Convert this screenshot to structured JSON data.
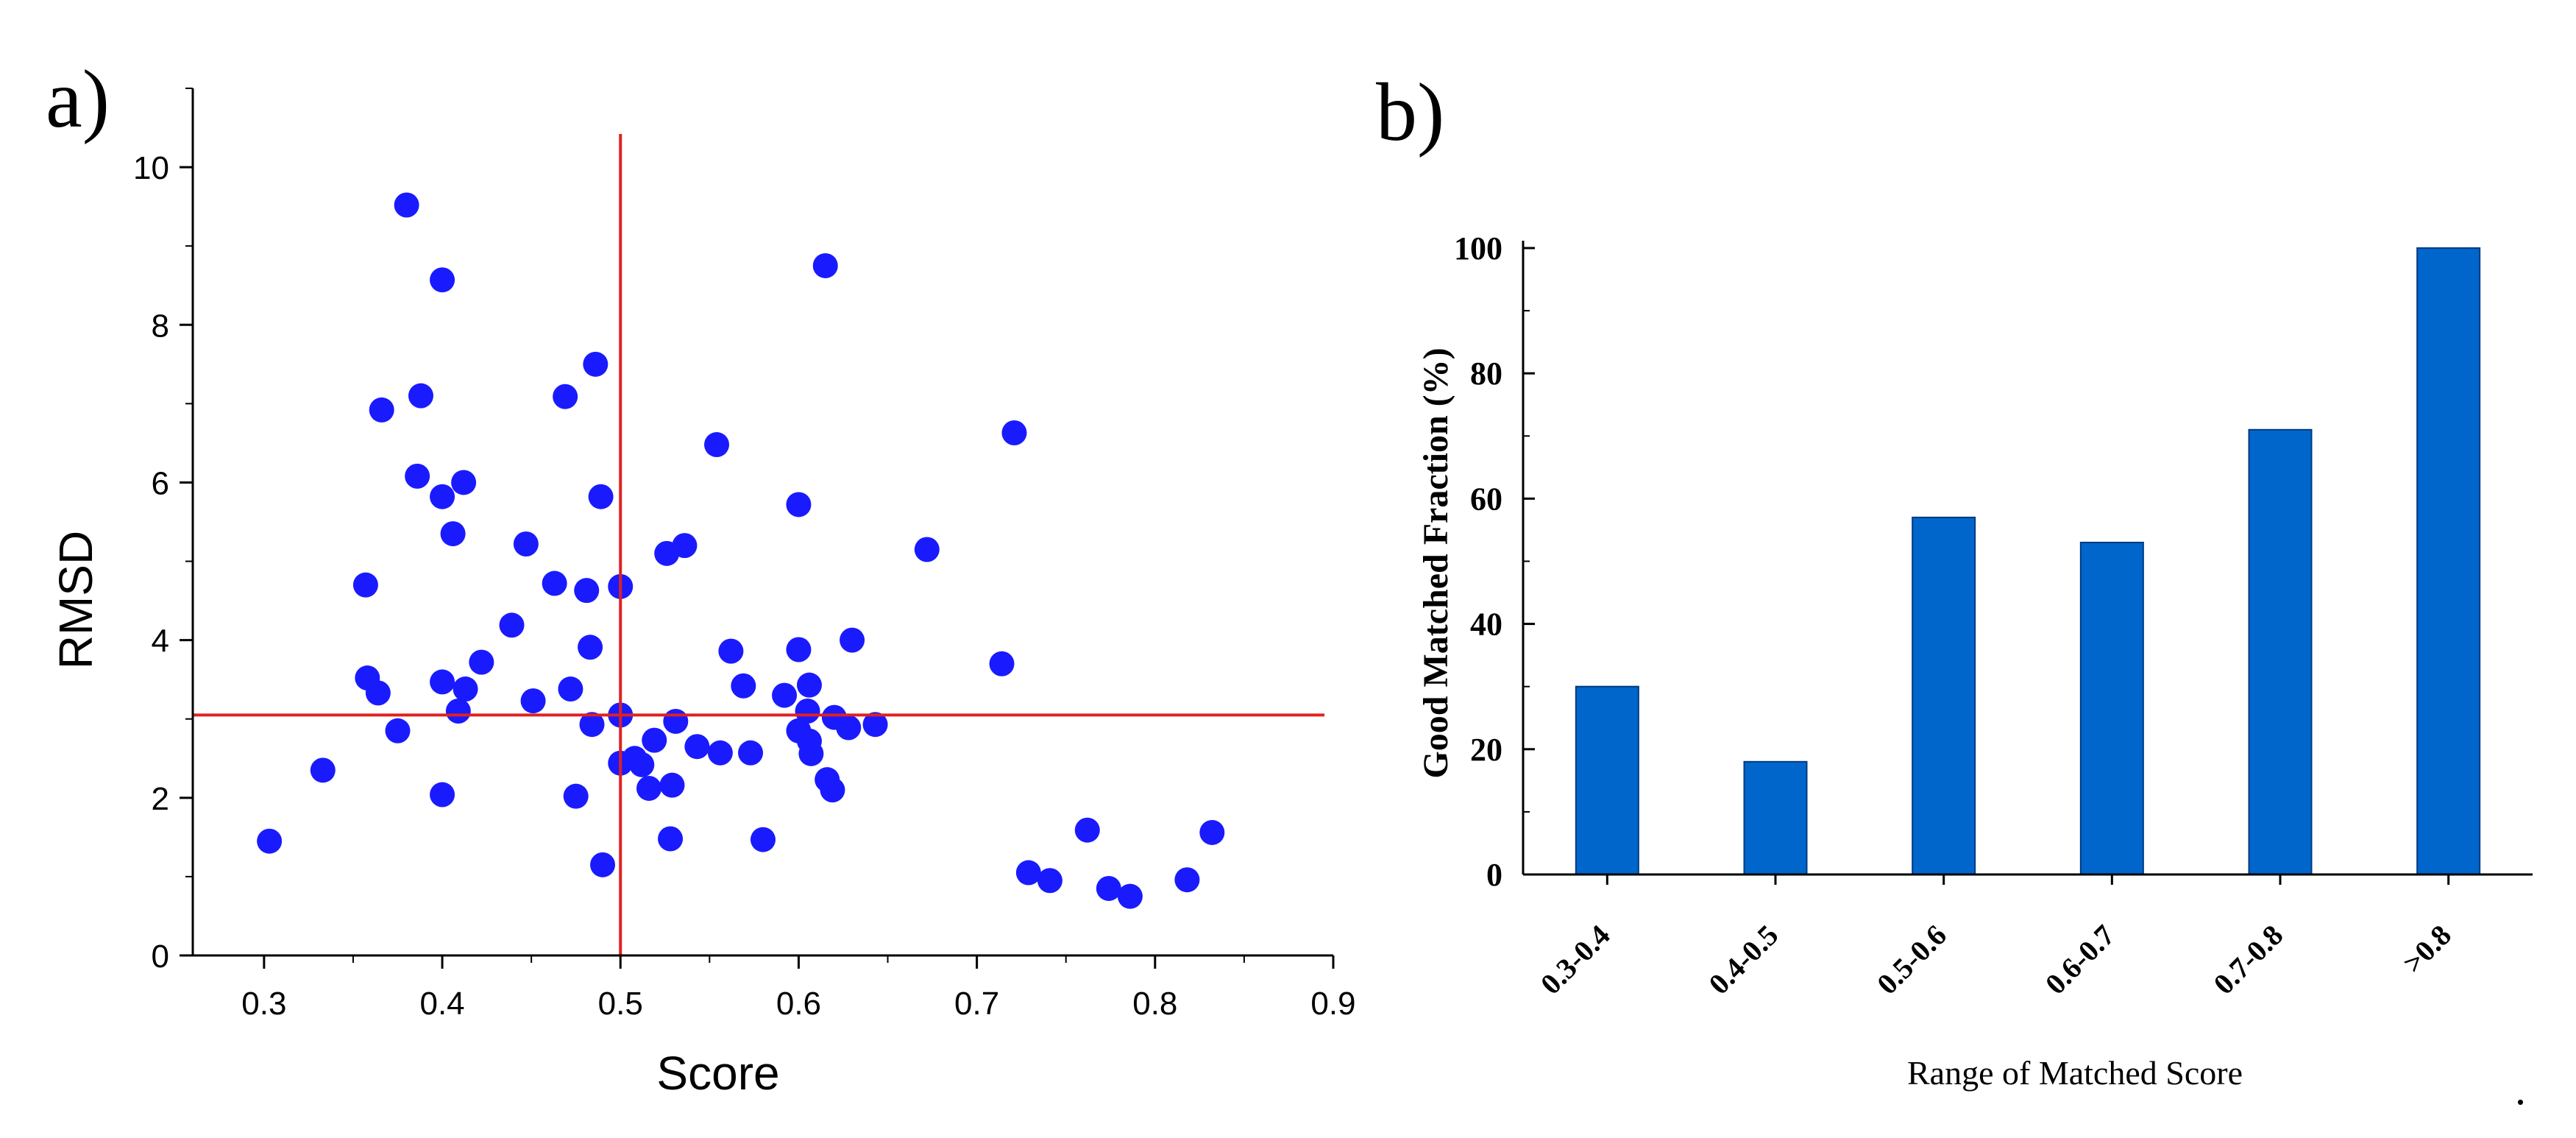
{
  "panels": {
    "a": {
      "label": "a)"
    },
    "b": {
      "label": "b)"
    }
  },
  "trailing_mark": ".",
  "colors": {
    "scatter_point": "#1a1aff",
    "threshold_line": "#e02020",
    "bar_fill": "#0066cc",
    "bar_stroke": "#003a80",
    "axis": "#000000"
  },
  "chart_data": [
    {
      "panel": "a",
      "type": "scatter",
      "title": "",
      "xlabel": "Score",
      "ylabel": "RMSD",
      "xlim": [
        0.26,
        0.9
      ],
      "ylim": [
        0,
        11
      ],
      "xticks": [
        0.3,
        0.4,
        0.5,
        0.6,
        0.7,
        0.8,
        0.9
      ],
      "xtick_labels": [
        "0.3",
        "0.4",
        "0.5",
        "0.6",
        "0.7",
        "0.8",
        "0.9"
      ],
      "yticks": [
        0,
        2,
        4,
        6,
        8,
        10
      ],
      "ytick_labels": [
        "0",
        "2",
        "4",
        "6",
        "8",
        "10"
      ],
      "grid": false,
      "reference_lines": {
        "vertical_x": 0.5,
        "horizontal_y": 3.05
      },
      "points": [
        [
          0.303,
          1.45
        ],
        [
          0.333,
          2.35
        ],
        [
          0.357,
          4.7
        ],
        [
          0.358,
          3.52
        ],
        [
          0.364,
          3.33
        ],
        [
          0.366,
          6.92
        ],
        [
          0.375,
          2.85
        ],
        [
          0.38,
          9.52
        ],
        [
          0.386,
          6.08
        ],
        [
          0.388,
          7.1
        ],
        [
          0.4,
          8.57
        ],
        [
          0.4,
          5.82
        ],
        [
          0.4,
          3.47
        ],
        [
          0.4,
          2.04
        ],
        [
          0.406,
          5.35
        ],
        [
          0.409,
          3.1
        ],
        [
          0.412,
          6.0
        ],
        [
          0.413,
          3.38
        ],
        [
          0.422,
          3.72
        ],
        [
          0.439,
          4.19
        ],
        [
          0.447,
          5.22
        ],
        [
          0.451,
          3.23
        ],
        [
          0.463,
          4.72
        ],
        [
          0.469,
          7.09
        ],
        [
          0.472,
          3.38
        ],
        [
          0.475,
          2.02
        ],
        [
          0.481,
          4.63
        ],
        [
          0.483,
          3.91
        ],
        [
          0.484,
          2.93
        ],
        [
          0.486,
          7.5
        ],
        [
          0.489,
          5.82
        ],
        [
          0.49,
          1.15
        ],
        [
          0.5,
          4.68
        ],
        [
          0.5,
          3.05
        ],
        [
          0.5,
          2.44
        ],
        [
          0.508,
          2.5
        ],
        [
          0.512,
          2.42
        ],
        [
          0.516,
          2.12
        ],
        [
          0.519,
          2.73
        ],
        [
          0.526,
          5.1
        ],
        [
          0.528,
          1.48
        ],
        [
          0.529,
          2.16
        ],
        [
          0.531,
          2.97
        ],
        [
          0.536,
          5.2
        ],
        [
          0.543,
          2.65
        ],
        [
          0.554,
          6.48
        ],
        [
          0.556,
          2.57
        ],
        [
          0.562,
          3.86
        ],
        [
          0.569,
          3.42
        ],
        [
          0.573,
          2.57
        ],
        [
          0.58,
          1.47
        ],
        [
          0.592,
          3.3
        ],
        [
          0.6,
          5.72
        ],
        [
          0.6,
          3.88
        ],
        [
          0.6,
          2.85
        ],
        [
          0.605,
          3.1
        ],
        [
          0.606,
          3.43
        ],
        [
          0.606,
          2.72
        ],
        [
          0.607,
          2.56
        ],
        [
          0.615,
          8.75
        ],
        [
          0.616,
          2.23
        ],
        [
          0.619,
          2.1
        ],
        [
          0.62,
          3.02
        ],
        [
          0.628,
          2.89
        ],
        [
          0.63,
          4.0
        ],
        [
          0.643,
          2.93
        ],
        [
          0.672,
          5.15
        ],
        [
          0.714,
          3.7
        ],
        [
          0.721,
          6.63
        ],
        [
          0.729,
          1.05
        ],
        [
          0.741,
          0.95
        ],
        [
          0.762,
          1.59
        ],
        [
          0.774,
          0.85
        ],
        [
          0.786,
          0.75
        ],
        [
          0.818,
          0.96
        ],
        [
          0.832,
          1.56
        ]
      ]
    },
    {
      "panel": "b",
      "type": "bar",
      "title": "",
      "xlabel": "Range of Matched Score",
      "ylabel": "Good Matched Fraction (%)",
      "ylim": [
        0,
        100
      ],
      "yticks": [
        0,
        20,
        40,
        60,
        80,
        100
      ],
      "ytick_labels": [
        "0",
        "20",
        "40",
        "60",
        "80",
        "100"
      ],
      "grid": false,
      "categories": [
        "0.3-0.4",
        "0.4-0.5",
        "0.5-0.6",
        "0.6-0.7",
        "0.7-0.8",
        ">0.8"
      ],
      "values": [
        30,
        18,
        57,
        53,
        71,
        100
      ]
    }
  ]
}
